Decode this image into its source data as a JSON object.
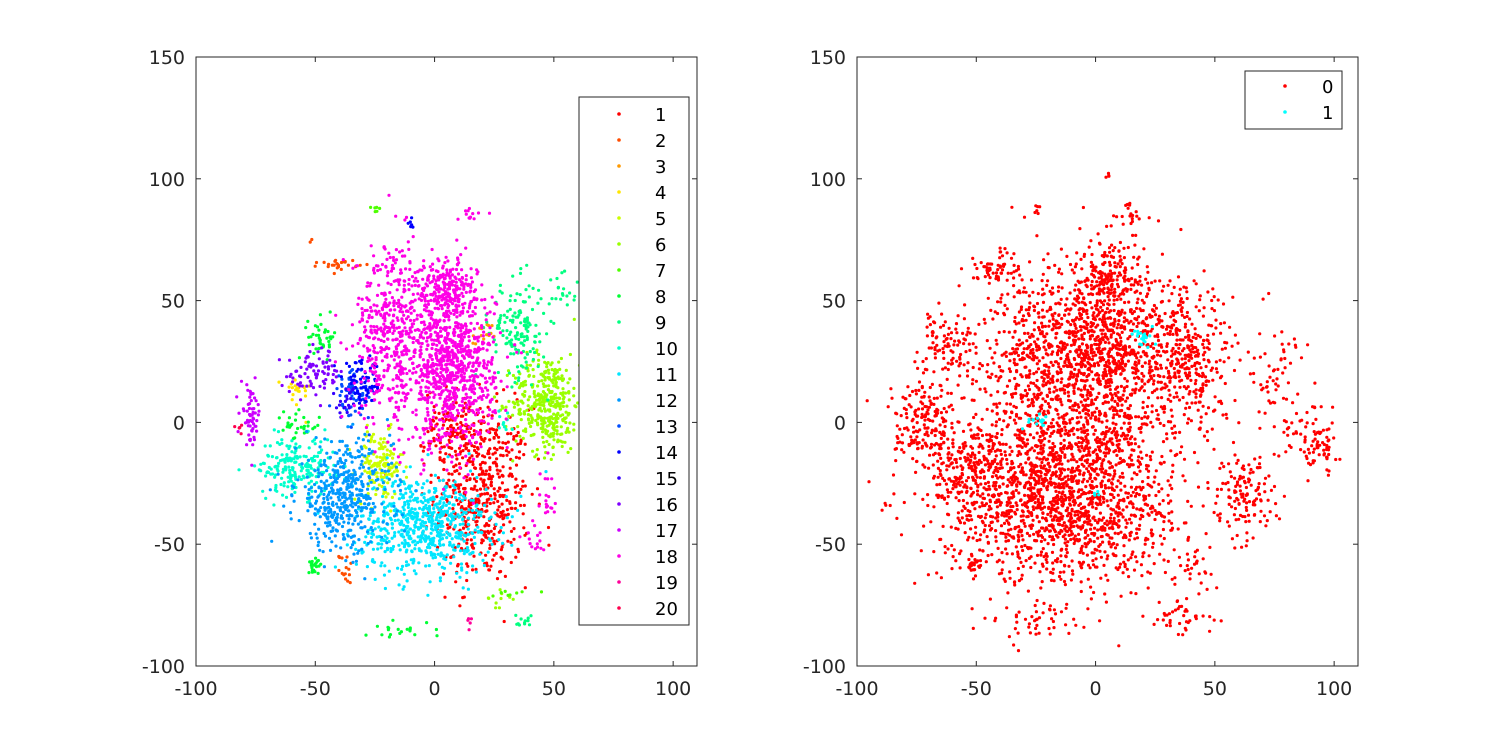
{
  "chart_data": [
    {
      "type": "scatter",
      "title": "",
      "xlabel": "",
      "ylabel": "",
      "xlim": [
        -100,
        110
      ],
      "ylim": [
        -100,
        150
      ],
      "x_ticks": [
        "-100",
        "-50",
        "0",
        "50",
        "100"
      ],
      "y_ticks": [
        "-100",
        "-50",
        "0",
        "50",
        "100",
        "150"
      ],
      "legend_placement": "right",
      "series": [
        {
          "name": "1",
          "color": "#ff0000",
          "clusters": [
            [
              20,
              -30,
              10,
              18,
              500
            ],
            [
              8,
              -2,
              6,
              8,
              120
            ]
          ]
        },
        {
          "name": "2",
          "color": "#ff4d00",
          "clusters": [
            [
              -40,
              65,
              4,
              1,
              25
            ],
            [
              -37,
              -60,
              1.5,
              3,
              15
            ],
            [
              -52,
              74,
              1,
              1,
              2
            ]
          ]
        },
        {
          "name": "3",
          "color": "#ff9900",
          "clusters": [
            [
              20,
              35,
              2,
              3,
              15
            ]
          ]
        },
        {
          "name": "4",
          "color": "#ffe600",
          "clusters": [
            [
              -58,
              12,
              3,
              4,
              20
            ]
          ]
        },
        {
          "name": "5",
          "color": "#ccff00",
          "clusters": [
            [
              -23,
              -18,
              5,
              7,
              150
            ]
          ]
        },
        {
          "name": "6",
          "color": "#99ff00",
          "clusters": [
            [
              47,
              8,
              7,
              10,
              380
            ],
            [
              28,
              -72,
              3,
              2,
              10
            ]
          ]
        },
        {
          "name": "7",
          "color": "#4dff00",
          "clusters": [
            [
              -25,
              87,
              1,
              1,
              6
            ],
            [
              32,
              -70,
              4,
              1,
              8
            ]
          ]
        },
        {
          "name": "8",
          "color": "#00ff33",
          "clusters": [
            [
              -47,
              35,
              3,
              4,
              40
            ],
            [
              -50,
              -58,
              1.5,
              1.5,
              20
            ],
            [
              -58,
              -2,
              5,
              3,
              30
            ],
            [
              -15,
              -85,
              7,
              2,
              20
            ]
          ]
        },
        {
          "name": "9",
          "color": "#00ff80",
          "clusters": [
            [
              35,
              38,
              6,
              10,
              150
            ],
            [
              54,
              56,
              3,
              5,
              20
            ],
            [
              37,
              -82,
              2,
              2,
              12
            ]
          ]
        },
        {
          "name": "10",
          "color": "#00ffcc",
          "clusters": [
            [
              -58,
              -18,
              8,
              6,
              200
            ],
            [
              30,
              0,
              2,
              3,
              10
            ]
          ]
        },
        {
          "name": "11",
          "color": "#00e6ff",
          "clusters": [
            [
              -4,
              -42,
              14,
              10,
              650
            ]
          ]
        },
        {
          "name": "12",
          "color": "#0099ff",
          "clusters": [
            [
              -38,
              -30,
              10,
              11,
              450
            ]
          ]
        },
        {
          "name": "13",
          "color": "#004dff",
          "clusters": [
            [
              -34,
              12,
              4,
              5,
              60
            ]
          ]
        },
        {
          "name": "14",
          "color": "#0000ff",
          "clusters": [
            [
              -30,
              15,
              4,
              5,
              70
            ],
            [
              -10,
              81,
              1,
              1,
              6
            ]
          ]
        },
        {
          "name": "15",
          "color": "#3300ff",
          "clusters": [
            [
              -37,
              9,
              2,
              3,
              20
            ]
          ]
        },
        {
          "name": "16",
          "color": "#8000ff",
          "clusters": [
            [
              -50,
              20,
              6,
              5,
              80
            ]
          ]
        },
        {
          "name": "17",
          "color": "#cc00ff",
          "clusters": [
            [
              -77,
              3,
              2,
              6,
              60
            ]
          ]
        },
        {
          "name": "18",
          "color": "#ff00e6",
          "clusters": [
            [
              7,
              23,
              9,
              16,
              900
            ],
            [
              -18,
              38,
              8,
              18,
              450
            ],
            [
              5,
              55,
              6,
              6,
              200
            ],
            [
              46,
              -32,
              2,
              8,
              20
            ],
            [
              42,
              -47,
              2,
              3,
              15
            ],
            [
              15,
              85,
              4,
              2,
              12
            ]
          ]
        },
        {
          "name": "19",
          "color": "#ff0099",
          "clusters": [
            [
              14,
              -82,
              1,
              2,
              5
            ]
          ]
        },
        {
          "name": "20",
          "color": "#ff004d",
          "clusters": [
            [
              -82,
              -3,
              1,
              2,
              5
            ]
          ]
        }
      ]
    },
    {
      "type": "scatter",
      "title": "",
      "xlabel": "",
      "ylabel": "",
      "xlim": [
        -100,
        110
      ],
      "ylim": [
        -100,
        150
      ],
      "x_ticks": [
        "-100",
        "-50",
        "0",
        "50",
        "100"
      ],
      "y_ticks": [
        "-100",
        "-50",
        "0",
        "50",
        "100",
        "150"
      ],
      "legend_placement": "top-right",
      "series": [
        {
          "name": "0",
          "color": "#ff0000",
          "clusters": [
            [
              -15,
              -30,
              25,
              18,
              1800
            ],
            [
              -18,
              25,
              14,
              20,
              800
            ],
            [
              8,
              30,
              10,
              20,
              700
            ],
            [
              38,
              25,
              10,
              15,
              400
            ],
            [
              -72,
              0,
              6,
              8,
              150
            ],
            [
              -55,
              -15,
              8,
              8,
              150
            ],
            [
              -62,
              30,
              6,
              8,
              100
            ],
            [
              -42,
              63,
              5,
              3,
              50
            ],
            [
              5,
              60,
              6,
              6,
              100
            ],
            [
              62,
              -32,
              6,
              8,
              120
            ],
            [
              75,
              20,
              6,
              15,
              60
            ],
            [
              88,
              -5,
              6,
              8,
              60
            ],
            [
              -50,
              -58,
              2,
              2,
              25
            ],
            [
              -20,
              -82,
              10,
              4,
              40
            ],
            [
              35,
              -80,
              6,
              4,
              40
            ],
            [
              42,
              -60,
              5,
              5,
              25
            ],
            [
              95,
              -10,
              3,
              5,
              30
            ],
            [
              15,
              85,
              4,
              3,
              20
            ],
            [
              5,
              101,
              1,
              1,
              4
            ],
            [
              -25,
              87,
              1,
              1,
              6
            ]
          ]
        },
        {
          "name": "1",
          "color": "#00ffff",
          "clusters": [
            [
              20,
              35,
              2,
              2,
              25
            ],
            [
              -23,
              0,
              3,
              1.5,
              15
            ],
            [
              0,
              -28,
              1,
              1,
              4
            ]
          ]
        }
      ]
    }
  ]
}
